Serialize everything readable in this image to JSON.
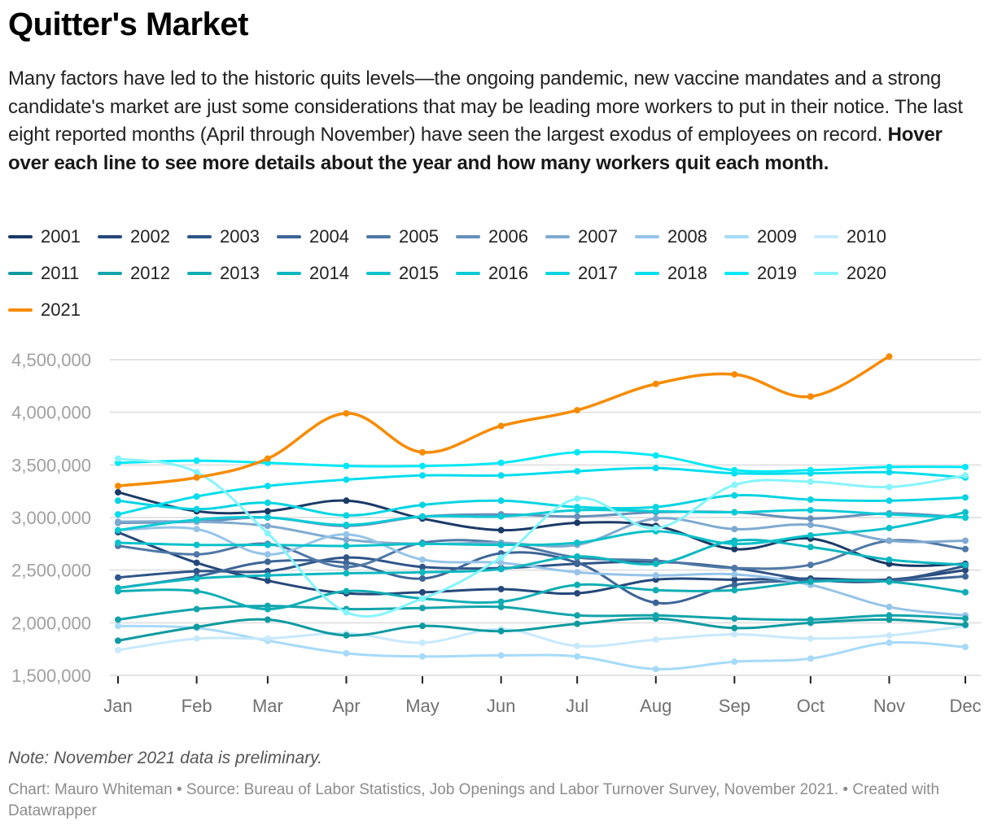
{
  "header": {
    "title": "Quitter's Market",
    "description": "Many factors have led to the historic quits levels—the ongoing pandemic, new vaccine mandates and a strong candidate's market are just some considerations that may be leading more workers to put in their notice. The last eight reported months (April through November) have seen the largest exodus of employees on record. ",
    "description_bold": "Hover over each line to see more details about the year and how many workers quit each month."
  },
  "footer": {
    "note": "Note: November 2021 data is preliminary.",
    "source": "Chart: Mauro Whiteman • Source: Bureau of Labor Statistics, Job Openings and Labor Turnover Survey, November 2021. • Created with Datawrapper"
  },
  "chart_data": {
    "type": "line",
    "title": "Quitter's Market",
    "xlabel": "",
    "ylabel": "",
    "categories": [
      "Jan",
      "Feb",
      "Mar",
      "Apr",
      "May",
      "Jun",
      "Jul",
      "Aug",
      "Sep",
      "Oct",
      "Nov",
      "Dec"
    ],
    "ylim": [
      1500000,
      4500000
    ],
    "yticks": [
      1500000,
      2000000,
      2500000,
      3000000,
      3500000,
      4000000,
      4500000
    ],
    "ytick_labels": [
      "1,500,000",
      "2,000,000",
      "2,500,000",
      "3,000,000",
      "3,500,000",
      "4,000,000",
      "4,500,000"
    ],
    "grid": true,
    "legend_position": "top",
    "series": [
      {
        "name": "2001",
        "color": "#1b3a66",
        "values": [
          3240000,
          3060000,
          3060000,
          3160000,
          2990000,
          2880000,
          2950000,
          2920000,
          2700000,
          2800000,
          2560000,
          2560000
        ]
      },
      {
        "name": "2002",
        "color": "#25487a",
        "values": [
          2860000,
          2570000,
          2400000,
          2280000,
          2290000,
          2320000,
          2280000,
          2410000,
          2410000,
          2420000,
          2410000,
          2500000
        ]
      },
      {
        "name": "2003",
        "color": "#2f5587",
        "values": [
          2430000,
          2490000,
          2490000,
          2620000,
          2530000,
          2520000,
          2560000,
          2580000,
          2520000,
          2410000,
          2400000,
          2540000
        ]
      },
      {
        "name": "2004",
        "color": "#3d6596",
        "values": [
          2330000,
          2440000,
          2580000,
          2570000,
          2420000,
          2660000,
          2570000,
          2190000,
          2360000,
          2400000,
          2400000,
          2440000
        ]
      },
      {
        "name": "2005",
        "color": "#4f78a6",
        "values": [
          2730000,
          2650000,
          2750000,
          2530000,
          2760000,
          2760000,
          2620000,
          2590000,
          2520000,
          2550000,
          2780000,
          2700000
        ]
      },
      {
        "name": "2006",
        "color": "#6690ba",
        "values": [
          2950000,
          2960000,
          3000000,
          2920000,
          3010000,
          3030000,
          3010000,
          3050000,
          3050000,
          2990000,
          3040000,
          3000000
        ]
      },
      {
        "name": "2007",
        "color": "#7faad0",
        "values": [
          2960000,
          2960000,
          2920000,
          2790000,
          2750000,
          2760000,
          2740000,
          2990000,
          2890000,
          2930000,
          2780000,
          2780000
        ]
      },
      {
        "name": "2008",
        "color": "#95c4e8",
        "values": [
          2880000,
          2890000,
          2650000,
          2840000,
          2600000,
          2570000,
          2480000,
          2450000,
          2460000,
          2360000,
          2150000,
          2070000
        ]
      },
      {
        "name": "2009",
        "color": "#a6daf8",
        "values": [
          1970000,
          1950000,
          1830000,
          1710000,
          1680000,
          1690000,
          1680000,
          1560000,
          1630000,
          1660000,
          1810000,
          1770000
        ]
      },
      {
        "name": "2010",
        "color": "#c8e9fc",
        "values": [
          1740000,
          1850000,
          1850000,
          1900000,
          1810000,
          1940000,
          1780000,
          1840000,
          1890000,
          1850000,
          1880000,
          1970000
        ]
      },
      {
        "name": "2011",
        "color": "#0f9aa0",
        "values": [
          1830000,
          1960000,
          2030000,
          1880000,
          1970000,
          1920000,
          1990000,
          2040000,
          1950000,
          2000000,
          2030000,
          1980000
        ]
      },
      {
        "name": "2012",
        "color": "#13a4aa",
        "values": [
          2030000,
          2130000,
          2160000,
          2130000,
          2140000,
          2150000,
          2070000,
          2070000,
          2040000,
          2030000,
          2070000,
          2040000
        ]
      },
      {
        "name": "2013",
        "color": "#10adb4",
        "values": [
          2300000,
          2300000,
          2130000,
          2300000,
          2230000,
          2200000,
          2360000,
          2310000,
          2310000,
          2390000,
          2390000,
          2290000
        ]
      },
      {
        "name": "2014",
        "color": "#0db7c0",
        "values": [
          2330000,
          2420000,
          2450000,
          2470000,
          2480000,
          2510000,
          2630000,
          2560000,
          2780000,
          2720000,
          2600000,
          2550000
        ]
      },
      {
        "name": "2015",
        "color": "#0bc1ca",
        "values": [
          2760000,
          2740000,
          2740000,
          2730000,
          2750000,
          2740000,
          2760000,
          2870000,
          2750000,
          2830000,
          2900000,
          3050000
        ]
      },
      {
        "name": "2016",
        "color": "#0acbd6",
        "values": [
          2880000,
          2980000,
          3000000,
          2930000,
          3010000,
          3010000,
          3070000,
          3060000,
          3050000,
          3070000,
          3030000,
          3000000
        ]
      },
      {
        "name": "2017",
        "color": "#06d4e2",
        "values": [
          3160000,
          3080000,
          3140000,
          3020000,
          3120000,
          3160000,
          3100000,
          3100000,
          3210000,
          3170000,
          3160000,
          3190000
        ]
      },
      {
        "name": "2018",
        "color": "#03dded",
        "values": [
          3030000,
          3200000,
          3300000,
          3360000,
          3400000,
          3400000,
          3440000,
          3470000,
          3420000,
          3420000,
          3430000,
          3380000
        ]
      },
      {
        "name": "2019",
        "color": "#00e8f5",
        "values": [
          3520000,
          3540000,
          3520000,
          3490000,
          3490000,
          3520000,
          3620000,
          3590000,
          3450000,
          3450000,
          3480000,
          3480000
        ]
      },
      {
        "name": "2020",
        "color": "#86f4fb",
        "values": [
          3560000,
          3430000,
          2850000,
          2100000,
          2230000,
          2620000,
          3180000,
          2900000,
          3310000,
          3340000,
          3290000,
          3400000
        ]
      },
      {
        "name": "2021",
        "color": "#f68b00",
        "values": [
          3300000,
          3380000,
          3560000,
          3990000,
          3620000,
          3870000,
          4020000,
          4270000,
          4360000,
          4150000,
          4530000,
          null
        ]
      }
    ]
  }
}
